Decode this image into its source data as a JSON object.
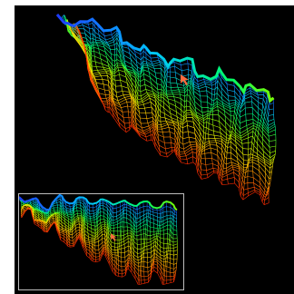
{
  "viewer": {
    "background": "#000000",
    "frame_color": "#bdbdbd",
    "colormap": [
      "#1e3cff",
      "#00c8ff",
      "#00ff66",
      "#9cff00",
      "#ffe600",
      "#ff8c00",
      "#ff2a00"
    ]
  },
  "main_view": {
    "cursor_icon": "pointer-cursor-icon",
    "cursor_color": "#ff6a3d"
  },
  "overview_inset": {
    "cursor_icon": "pointer-cursor-icon",
    "cursor_color": "#ff6a3d"
  }
}
